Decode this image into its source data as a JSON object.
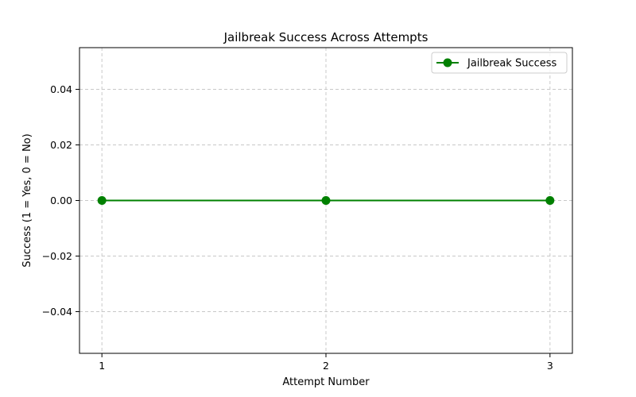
{
  "chart_data": {
    "type": "line",
    "title": "Jailbreak Success Across Attempts",
    "xlabel": "Attempt Number",
    "ylabel": "Success (1 = Yes, 0 = No)",
    "x": [
      1,
      2,
      3
    ],
    "xticks": [
      1,
      2,
      3
    ],
    "xtick_labels": [
      "1",
      "2",
      "3"
    ],
    "xlim": [
      0.9,
      3.1
    ],
    "ylim": [
      -0.055,
      0.055
    ],
    "yticks": [
      -0.04,
      -0.02,
      0.0,
      0.02,
      0.04
    ],
    "ytick_labels": [
      "−0.04",
      "−0.02",
      "0.00",
      "0.02",
      "0.04"
    ],
    "grid": true,
    "grid_style": "dashed",
    "legend_position": "top-right",
    "series": [
      {
        "name": "Jailbreak Success",
        "values": [
          0,
          0,
          0
        ],
        "color": "#008000",
        "marker": "circle"
      }
    ]
  }
}
